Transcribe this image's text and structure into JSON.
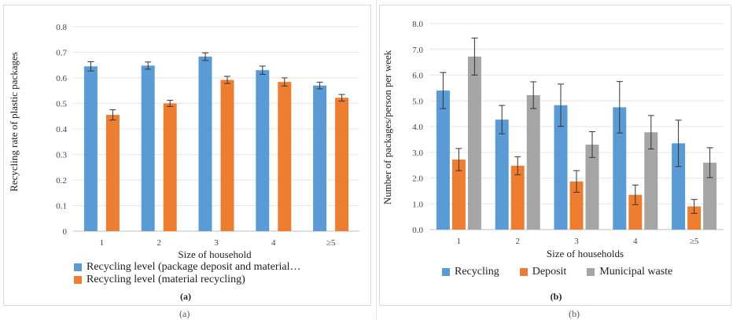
{
  "charts": [
    {
      "type": "bar",
      "x_label": "Size of household",
      "y_label": "Recycling rate of plastic packages",
      "y_ticks": [
        "0",
        "0.1",
        "0.2",
        "0.3",
        "0.4",
        "0.5",
        "0.6",
        "0.7",
        "0.8"
      ],
      "ylim": [
        0,
        0.8
      ],
      "categories": [
        "1",
        "2",
        "3",
        "4",
        "≥5"
      ],
      "series": [
        {
          "name": "Recycling level (package deposit and material…",
          "color": "#5B9BD5",
          "values": [
            0.645,
            0.648,
            0.683,
            0.63,
            0.57
          ],
          "errors": [
            0.018,
            0.014,
            0.015,
            0.016,
            0.013
          ]
        },
        {
          "name": "Recycling level (material recycling)",
          "color": "#ED7D31",
          "values": [
            0.455,
            0.5,
            0.592,
            0.584,
            0.522
          ],
          "errors": [
            0.02,
            0.012,
            0.014,
            0.016,
            0.013
          ]
        }
      ],
      "grid": true,
      "legend_position": "bottom",
      "caption": "(a)",
      "caption_outer": "(a)"
    },
    {
      "type": "bar",
      "x_label": "Size of households",
      "y_label": "Number of packages/person per week",
      "y_ticks": [
        "0.0",
        "1.0",
        "2.0",
        "3.0",
        "4.0",
        "5.0",
        "6.0",
        "7.0",
        "8.0"
      ],
      "ylim": [
        0,
        8
      ],
      "categories": [
        "1",
        "2",
        "3",
        "4",
        "≥5"
      ],
      "series": [
        {
          "name": "Recycling",
          "color": "#5B9BD5",
          "values": [
            5.4,
            4.27,
            4.83,
            4.75,
            3.35
          ],
          "errors": [
            0.7,
            0.55,
            0.82,
            1.0,
            0.9
          ]
        },
        {
          "name": "Deposit",
          "color": "#ED7D31",
          "values": [
            2.72,
            2.48,
            1.87,
            1.35,
            0.9
          ],
          "errors": [
            0.43,
            0.35,
            0.42,
            0.38,
            0.27
          ]
        },
        {
          "name": "Municipal waste",
          "color": "#A5A5A5",
          "values": [
            6.72,
            5.22,
            3.3,
            3.78,
            2.6
          ],
          "errors": [
            0.72,
            0.52,
            0.5,
            0.65,
            0.58
          ]
        }
      ],
      "grid": true,
      "legend_position": "bottom",
      "caption": "(b)",
      "caption_outer": "(b)"
    }
  ]
}
